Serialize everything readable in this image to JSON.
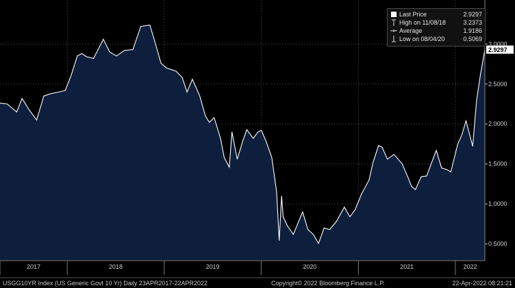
{
  "legend": {
    "items": [
      {
        "label": "Last Price",
        "value": "2.9297",
        "icon": "last-price-swatch"
      },
      {
        "label": "High on 11/08/18",
        "value": "3.2373",
        "icon": "high-marker"
      },
      {
        "label": "Average",
        "value": "1.9186",
        "icon": "average-marker"
      },
      {
        "label": "Low on 08/04/20",
        "value": "0.5069",
        "icon": "low-marker"
      }
    ]
  },
  "footer": {
    "left": "USGG10YR Index (US Generic Govt 10 Yr)  Daily 23APR2017-22APR2022",
    "center": "Copyright© 2022 Bloomberg Finance L.P.",
    "right": "22-Apr-2022 08:21:21"
  },
  "colors": {
    "background": "#000000",
    "area_fill": "#0e1f3d",
    "line": "#ffffff",
    "grid": "#6a6a6a",
    "last_price_box": "#ffffff"
  },
  "chart_data": {
    "type": "area",
    "last_price_label": "2.9297",
    "xlim": [
      "2017-04-23",
      "2022-04-22"
    ],
    "ylim": [
      0.3,
      3.55
    ],
    "grid": true,
    "y_ticks": [
      "0.5000",
      "1.0000",
      "1.5000",
      "2.0000",
      "2.5000",
      "3.0000"
    ],
    "x_ticks": [
      "2017",
      "2018",
      "2019",
      "2020",
      "2021",
      "2022"
    ],
    "series": [
      {
        "x": [
          "2017-04-23",
          "2017-05-20",
          "2017-06-25",
          "2017-07-15",
          "2017-08-10",
          "2017-09-08",
          "2017-10-05",
          "2017-11-01",
          "2017-12-01",
          "2017-12-25",
          "2018-01-15",
          "2018-02-08",
          "2018-02-25",
          "2018-03-15",
          "2018-04-10",
          "2018-05-17",
          "2018-06-10",
          "2018-07-05",
          "2018-08-05",
          "2018-09-05",
          "2018-10-05",
          "2018-11-08",
          "2018-11-25",
          "2018-12-20",
          "2019-01-10",
          "2019-02-15",
          "2019-03-10",
          "2019-03-28",
          "2019-04-17",
          "2019-05-15",
          "2019-06-05",
          "2019-06-20",
          "2019-07-08",
          "2019-08-01",
          "2019-08-15",
          "2019-09-03",
          "2019-09-13",
          "2019-10-03",
          "2019-10-25",
          "2019-11-08",
          "2019-12-02",
          "2019-12-20",
          "2020-01-02",
          "2020-01-20",
          "2020-02-10",
          "2020-02-28",
          "2020-03-09",
          "2020-03-18",
          "2020-03-24",
          "2020-04-10",
          "2020-05-01",
          "2020-06-05",
          "2020-06-25",
          "2020-07-15",
          "2020-08-04",
          "2020-08-25",
          "2020-09-15",
          "2020-10-10",
          "2020-11-09",
          "2020-11-30",
          "2020-12-20",
          "2021-01-12",
          "2021-02-10",
          "2021-02-25",
          "2021-03-18",
          "2021-03-31",
          "2021-04-20",
          "2021-05-15",
          "2021-06-15",
          "2021-07-08",
          "2021-07-20",
          "2021-08-04",
          "2021-08-25",
          "2021-09-15",
          "2021-10-21",
          "2021-11-10",
          "2021-11-30",
          "2021-12-15",
          "2022-01-10",
          "2022-01-25",
          "2022-02-10",
          "2022-02-25",
          "2022-03-07",
          "2022-03-22",
          "2022-04-05",
          "2022-04-22"
        ],
        "y": [
          2.26,
          2.25,
          2.15,
          2.32,
          2.18,
          2.05,
          2.35,
          2.38,
          2.4,
          2.42,
          2.6,
          2.85,
          2.88,
          2.84,
          2.82,
          3.06,
          2.9,
          2.85,
          2.92,
          2.93,
          3.22,
          3.2373,
          3.05,
          2.76,
          2.7,
          2.66,
          2.58,
          2.4,
          2.56,
          2.35,
          2.1,
          2.02,
          2.08,
          1.82,
          1.58,
          1.46,
          1.9,
          1.56,
          1.8,
          1.93,
          1.82,
          1.9,
          1.92,
          1.78,
          1.58,
          1.15,
          0.54,
          1.1,
          0.84,
          0.72,
          0.62,
          0.9,
          0.68,
          0.62,
          0.5069,
          0.7,
          0.68,
          0.78,
          0.96,
          0.84,
          0.93,
          1.12,
          1.3,
          1.52,
          1.73,
          1.71,
          1.56,
          1.62,
          1.5,
          1.32,
          1.22,
          1.18,
          1.34,
          1.35,
          1.67,
          1.45,
          1.43,
          1.4,
          1.75,
          1.86,
          2.04,
          1.85,
          1.72,
          2.3,
          2.61,
          2.9297
        ]
      }
    ]
  }
}
